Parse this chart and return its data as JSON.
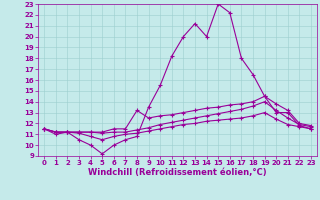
{
  "xlabel": "Windchill (Refroidissement éolien,°C)",
  "ylabel": "",
  "xlim": [
    -0.5,
    23.5
  ],
  "ylim": [
    9,
    23
  ],
  "xticks": [
    0,
    1,
    2,
    3,
    4,
    5,
    6,
    7,
    8,
    9,
    10,
    11,
    12,
    13,
    14,
    15,
    16,
    17,
    18,
    19,
    20,
    21,
    22,
    23
  ],
  "yticks": [
    9,
    10,
    11,
    12,
    13,
    14,
    15,
    16,
    17,
    18,
    19,
    20,
    21,
    22,
    23
  ],
  "background_color": "#c5eaea",
  "grid_color": "#9dcece",
  "line_color": "#990099",
  "line1_x": [
    0,
    1,
    2,
    3,
    4,
    5,
    6,
    7,
    8,
    9,
    10,
    11,
    12,
    13,
    14,
    15,
    16,
    17,
    18,
    19,
    20,
    21,
    22,
    23
  ],
  "line1_y": [
    11.5,
    11.0,
    11.2,
    10.5,
    10.0,
    9.2,
    10.0,
    10.5,
    10.8,
    13.5,
    15.5,
    18.2,
    20.0,
    21.2,
    20.0,
    23.0,
    22.2,
    18.0,
    16.5,
    14.5,
    13.0,
    13.0,
    11.8,
    11.5
  ],
  "line2_x": [
    0,
    1,
    2,
    3,
    4,
    5,
    6,
    7,
    8,
    9,
    10,
    11,
    12,
    13,
    14,
    15,
    16,
    17,
    18,
    19,
    20,
    21,
    22,
    23
  ],
  "line2_y": [
    11.5,
    11.2,
    11.2,
    11.2,
    11.2,
    11.2,
    11.5,
    11.5,
    13.2,
    12.5,
    12.7,
    12.8,
    13.0,
    13.2,
    13.4,
    13.5,
    13.7,
    13.8,
    14.0,
    14.5,
    13.8,
    13.2,
    12.0,
    11.8
  ],
  "line3_x": [
    0,
    1,
    2,
    3,
    4,
    5,
    6,
    7,
    8,
    9,
    10,
    11,
    12,
    13,
    14,
    15,
    16,
    17,
    18,
    19,
    20,
    21,
    22,
    23
  ],
  "line3_y": [
    11.5,
    11.2,
    11.2,
    11.2,
    11.2,
    11.1,
    11.2,
    11.2,
    11.4,
    11.6,
    11.9,
    12.1,
    12.3,
    12.5,
    12.7,
    12.9,
    13.1,
    13.3,
    13.6,
    14.0,
    13.2,
    12.5,
    11.9,
    11.7
  ],
  "line4_x": [
    0,
    1,
    2,
    3,
    4,
    5,
    6,
    7,
    8,
    9,
    10,
    11,
    12,
    13,
    14,
    15,
    16,
    17,
    18,
    19,
    20,
    21,
    22,
    23
  ],
  "line4_y": [
    11.5,
    11.2,
    11.2,
    11.1,
    10.8,
    10.5,
    10.8,
    11.0,
    11.1,
    11.3,
    11.5,
    11.7,
    11.9,
    12.0,
    12.2,
    12.3,
    12.4,
    12.5,
    12.7,
    13.0,
    12.4,
    11.9,
    11.7,
    11.5
  ],
  "marker": "+",
  "markersize": 3,
  "linewidth": 0.8,
  "tick_fontsize": 5,
  "label_fontsize": 6
}
